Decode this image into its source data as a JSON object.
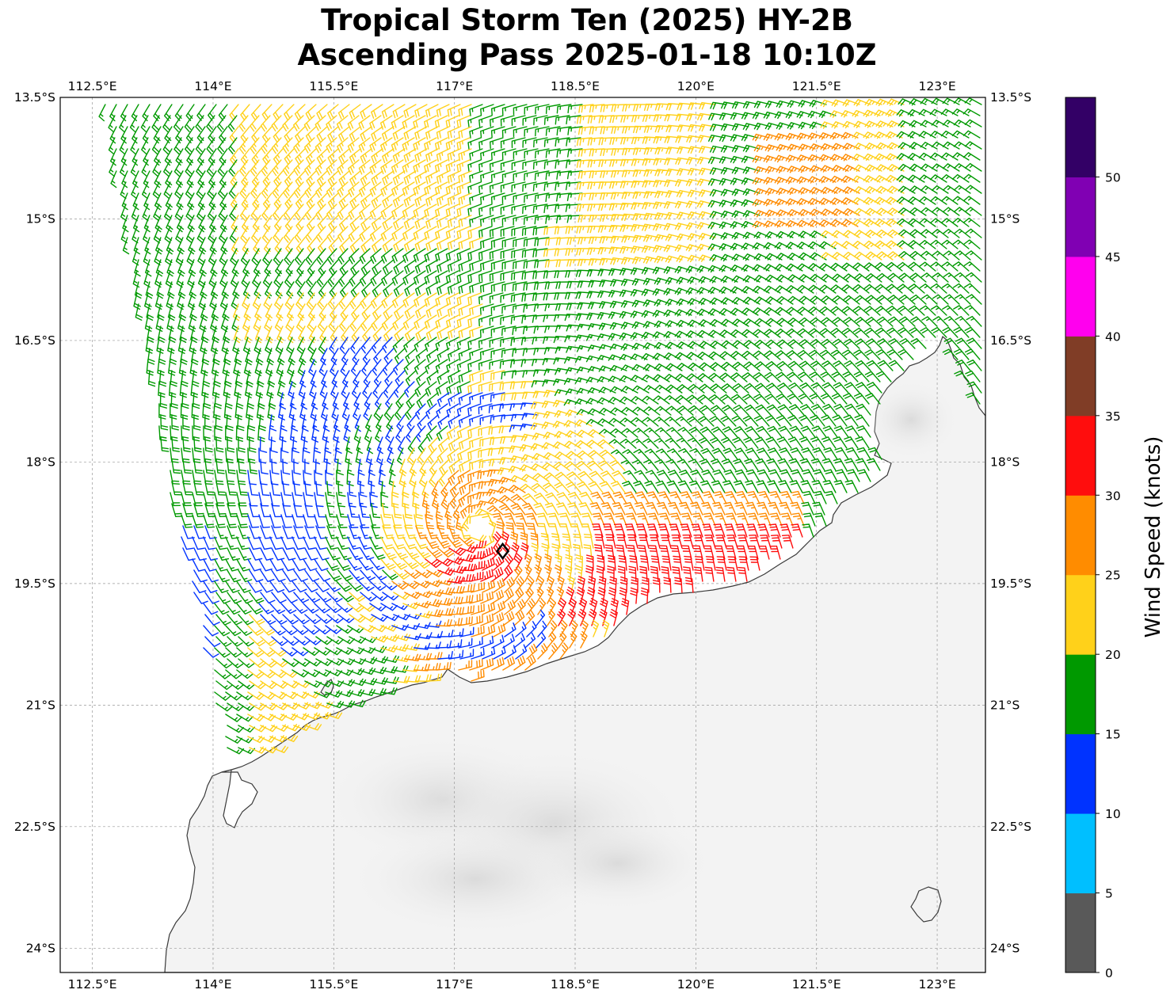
{
  "title": {
    "line1": "Tropical Storm Ten (2025) HY-2B",
    "line2": "Ascending Pass 2025-01-18 10:10Z"
  },
  "map": {
    "lon_range": [
      112.1,
      123.6
    ],
    "lat_range": [
      -24.3,
      -13.5
    ],
    "lon_ticks": [
      "112.5°E",
      "114°E",
      "115.5°E",
      "117°E",
      "118.5°E",
      "120°E",
      "121.5°E",
      "123°E"
    ],
    "lon_tick_values": [
      112.5,
      114,
      115.5,
      117,
      118.5,
      120,
      121.5,
      123
    ],
    "lat_ticks": [
      "13.5°S",
      "15°S",
      "16.5°S",
      "18°S",
      "19.5°S",
      "21°S",
      "22.5°S",
      "24°S"
    ],
    "lat_tick_values": [
      -13.5,
      -15,
      -16.5,
      -18,
      -19.5,
      -21,
      -22.5,
      -24
    ],
    "gridlines": true,
    "storm_center": {
      "lon": 117.6,
      "lat": -19.1,
      "symbol": "diamond-marker"
    },
    "circulation_center": {
      "lon": 117.3,
      "lat": -18.8
    },
    "swath_west_edge": [
      [
        112.6,
        -13.7
      ],
      [
        113.8,
        -18.0
      ],
      [
        114.2,
        -21.8
      ]
    ],
    "land": "northwest-australia"
  },
  "colorbar": {
    "label": "Wind Speed (knots)",
    "ticks": [
      "0",
      "5",
      "10",
      "15",
      "20",
      "25",
      "30",
      "35",
      "40",
      "45",
      "50"
    ],
    "bins": [
      {
        "min": 0,
        "max": 5,
        "color": "#595959"
      },
      {
        "min": 5,
        "max": 10,
        "color": "#00bfff"
      },
      {
        "min": 10,
        "max": 15,
        "color": "#0033ff"
      },
      {
        "min": 15,
        "max": 20,
        "color": "#009900"
      },
      {
        "min": 20,
        "max": 25,
        "color": "#ffd11a"
      },
      {
        "min": 25,
        "max": 30,
        "color": "#ff8c00"
      },
      {
        "min": 30,
        "max": 35,
        "color": "#ff0d0d"
      },
      {
        "min": 35,
        "max": 40,
        "color": "#803d26"
      },
      {
        "min": 40,
        "max": 45,
        "color": "#ff00ee"
      },
      {
        "min": 45,
        "max": 50,
        "color": "#8000b3"
      },
      {
        "min": 50,
        "max": 55,
        "color": "#330066"
      }
    ]
  }
}
